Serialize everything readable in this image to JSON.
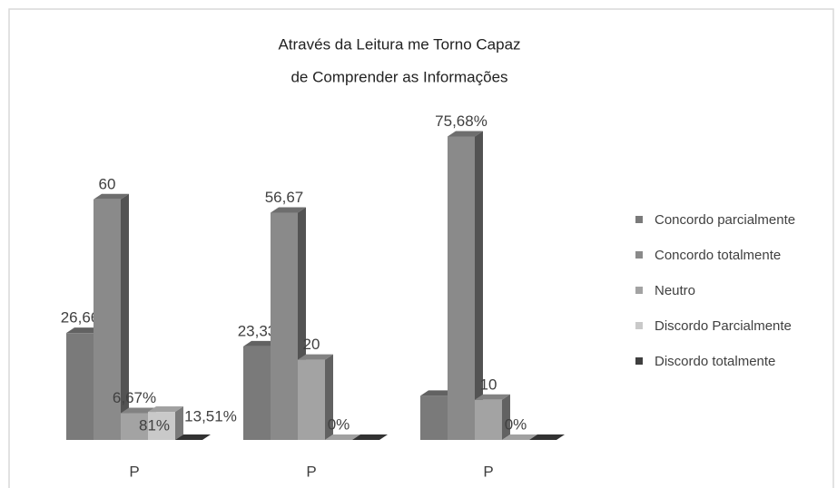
{
  "chart_data": {
    "type": "bar3d",
    "title_lines": [
      "Através da Leitura me Torno Capaz",
      "de Comprender as Informações"
    ],
    "categories": [
      "P",
      "P",
      "P"
    ],
    "series": [
      {
        "name": "Concordo parcialmente",
        "color": "#7a7a7a",
        "values": [
          26.66,
          23.33,
          11
        ],
        "value_labels": [
          "26,66",
          "23,33",
          null
        ]
      },
      {
        "name": "Concordo totalmente",
        "color": "#8a8a8a",
        "values": [
          60,
          56.67,
          75.68
        ],
        "value_labels": [
          "60",
          "56,67",
          "75,68%"
        ]
      },
      {
        "name": "Neutro",
        "color": "#a3a3a3",
        "values": [
          6.67,
          20,
          10
        ],
        "value_labels": [
          "6,67%",
          "20",
          "10"
        ]
      },
      {
        "name": "Discordo Parcialmente",
        "color": "#c9c9c9",
        "values": [
          7,
          0,
          0
        ],
        "value_labels": [
          null,
          "0%",
          "0%"
        ]
      },
      {
        "name": "Discordo totalmente",
        "color": "#3f3f3f",
        "values": [
          0,
          0,
          0
        ],
        "value_labels": [
          null,
          null,
          null
        ]
      }
    ],
    "annotations": [
      "81%",
      "13,51%"
    ]
  }
}
